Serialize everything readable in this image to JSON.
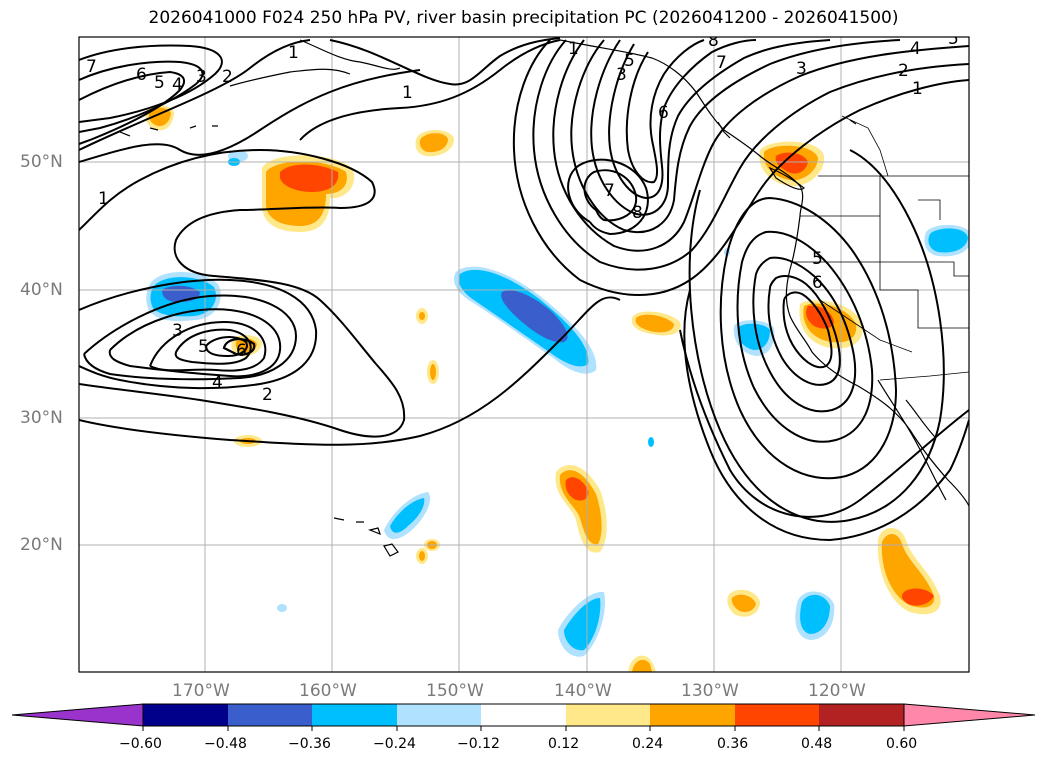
{
  "title": "2026041000 F024 250 hPa PV, river basin precipitation PC (2026041200 - 2026041500)",
  "axes": {
    "lat_labels": [
      "50°N",
      "40°N",
      "30°N",
      "20°N"
    ],
    "lon_labels": [
      "170°W",
      "160°W",
      "150°W",
      "140°W",
      "130°W",
      "120°W"
    ]
  },
  "colorbar": {
    "ticks": [
      "−0.60",
      "−0.48",
      "−0.36",
      "−0.24",
      "−0.12",
      "0.12",
      "0.24",
      "0.36",
      "0.48",
      "0.60"
    ],
    "colors": [
      "#9933cc",
      "#00008b",
      "#3a5fcd",
      "#00bfff",
      "#b0e2ff",
      "#ffffff",
      "#ffe88a",
      "#ffa500",
      "#ff4500",
      "#b22222",
      "#ff88aa"
    ]
  },
  "contour_labels": [
    "1",
    "2",
    "3",
    "4",
    "5",
    "6",
    "7",
    "8"
  ],
  "contour_color": "#000000",
  "grid_color": "#b0b0b0"
}
